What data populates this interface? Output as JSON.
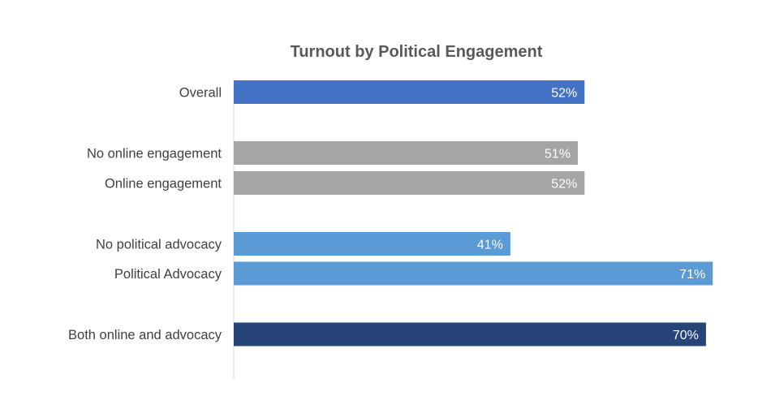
{
  "chart_data": {
    "type": "bar",
    "orientation": "horizontal",
    "title": "Turnout by Political Engagement",
    "xlabel": "",
    "ylabel": "",
    "xlim": [
      0,
      72.9
    ],
    "grid": false,
    "legend": "none",
    "categories": [
      "Overall",
      "No online engagement",
      "Online engagement",
      "No political advocacy",
      "Political Advocacy",
      "Both online and advocacy"
    ],
    "values": [
      52,
      51,
      52,
      41,
      71,
      70
    ],
    "data_labels": [
      "52%",
      "51%",
      "52%",
      "41%",
      "71%",
      "70%"
    ],
    "colors": [
      "#4472C4",
      "#A5A5A5",
      "#A5A5A5",
      "#5B9BD5",
      "#5B9BD5",
      "#264478"
    ]
  }
}
